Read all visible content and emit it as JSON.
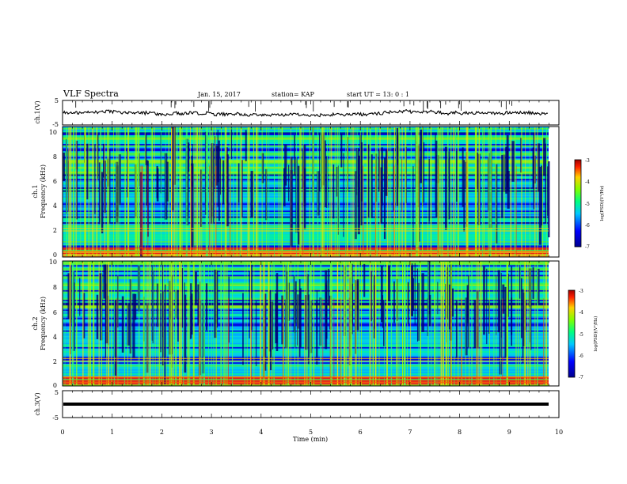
{
  "header": {
    "title": "VLF Spectra",
    "date": "Jan. 15, 2017",
    "station": "station= KAP",
    "start": "start  UT  =   13: 0  : 1"
  },
  "chart_data": {
    "type": "heatmap",
    "xlabel": "Time  (min)",
    "xlim": [
      0,
      10
    ],
    "xticks": [
      "0",
      "1",
      "2",
      "3",
      "4",
      "5",
      "6",
      "7",
      "8",
      "9",
      "10"
    ],
    "panels": [
      {
        "kind": "waveform",
        "ylabel": "ch.1(V)",
        "ylim": [
          -5,
          5
        ],
        "yticks": [
          "5",
          "-5"
        ]
      },
      {
        "kind": "spectrogram",
        "ylabel_channel": "ch.1",
        "ylabel": "Frequency  (kHz)",
        "ylim": [
          0,
          10
        ],
        "yticks": [
          "10",
          "8",
          "6",
          "4",
          "2",
          "0"
        ],
        "colorbar": {
          "label": "log(PSD)(V²/Hz)",
          "range": [
            -7,
            -3
          ],
          "ticks": [
            "-3",
            "-4",
            "-5",
            "-6",
            "-7"
          ]
        }
      },
      {
        "kind": "spectrogram",
        "ylabel_channel": "ch.2",
        "ylabel": "Frequency  (kHz)",
        "ylim": [
          0,
          10
        ],
        "yticks": [
          "10",
          "8",
          "6",
          "4",
          "2",
          "0"
        ],
        "colorbar": {
          "label": "log(PSD)(V²/Hz)",
          "range": [
            -7,
            -3
          ],
          "ticks": [
            "-3",
            "-4",
            "-5",
            "-6",
            "-7"
          ]
        }
      },
      {
        "kind": "waveform",
        "ylabel": "ch.3(V)",
        "ylim": [
          -5,
          5
        ],
        "yticks": [
          "5",
          "-5"
        ]
      }
    ]
  }
}
